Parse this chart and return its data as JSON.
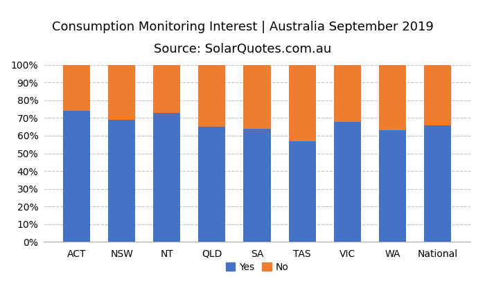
{
  "title_line1": "Consumption Monitoring Interest | Australia September 2019",
  "title_line2": "Source: SolarQuotes.com.au",
  "categories": [
    "ACT",
    "NSW",
    "NT",
    "QLD",
    "SA",
    "TAS",
    "VIC",
    "WA",
    "National"
  ],
  "yes_values": [
    74,
    69,
    73,
    65,
    64,
    57,
    68,
    63,
    66
  ],
  "no_values": [
    26,
    31,
    27,
    35,
    36,
    43,
    32,
    37,
    34
  ],
  "yes_color": "#4472C4",
  "no_color": "#ED7D31",
  "background_color": "#FFFFFF",
  "grid_color": "#C0C0C0",
  "ylabel_ticks": [
    0,
    10,
    20,
    30,
    40,
    50,
    60,
    70,
    80,
    90,
    100
  ],
  "ylim": [
    0,
    100
  ],
  "bar_width": 0.6,
  "legend_labels": [
    "Yes",
    "No"
  ],
  "title_fontsize": 13,
  "axis_tick_fontsize": 10,
  "legend_fontsize": 10
}
